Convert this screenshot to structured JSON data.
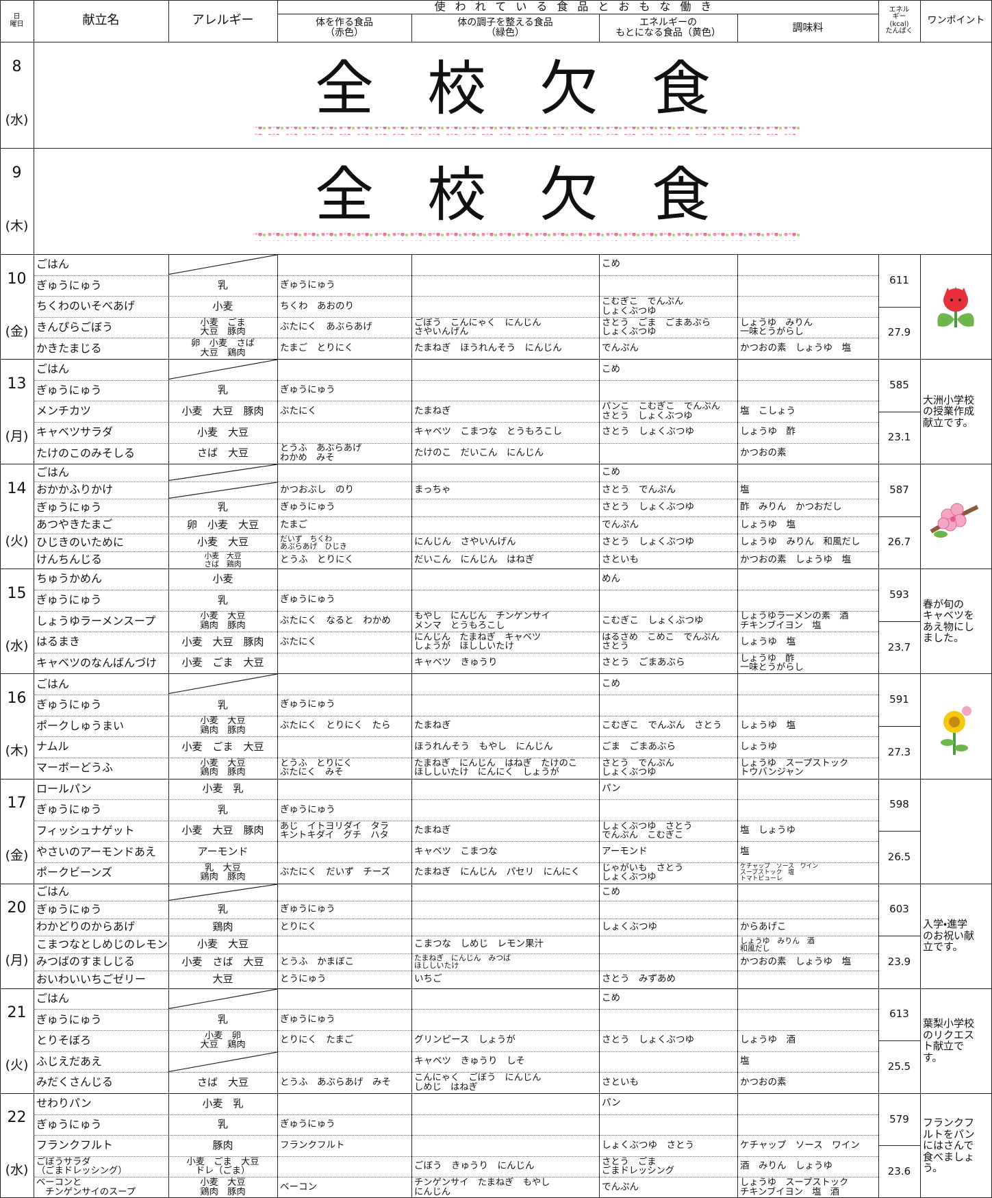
{
  "header": {
    "day": "日\n曜日",
    "menu": "献立名",
    "allergy": "アレルギー",
    "group": "使われている食品とおもな働き",
    "red": "体を作る食品\n（赤色）",
    "green": "体の調子を整える食品\n（緑色）",
    "yellow": "エネルギーの\nもとになる食品（黄色）",
    "seasoning": "調味料",
    "energy": "エネル\nギー\n(kcal)\nたんぱく",
    "point": "ワンポイント"
  },
  "days": [
    {
      "date": "8",
      "weekday": "(水)",
      "notice": "全校欠食"
    },
    {
      "date": "9",
      "weekday": "(木)",
      "notice": "全校欠食"
    },
    {
      "date": "10",
      "weekday": "(金)",
      "energy": 611,
      "protein": 27.9,
      "items": [
        {
          "menu": "ごはん",
          "yellow": "こめ"
        },
        {
          "menu": "ぎゅうにゅう",
          "allergy": "乳",
          "red": "ぎゅうにゅう"
        },
        {
          "menu": "ちくわのいそべあげ",
          "allergy": "小麦",
          "red": "ちくわ　あおのり",
          "yellow": "こむぎこ　でんぷん\nしょくぶつゆ"
        },
        {
          "menu": "きんぴらごぼう",
          "allergy": "小麦　ごま\n大豆　豚肉",
          "red": "ぶたにく　あぶらあげ",
          "green": "ごぼう　こんにゃく　にんじん\nさやいんげん",
          "yellow": "さとう　ごま　ごまあぶら\nしょくぶつゆ",
          "seasoning": "しょうゆ　みりん\n一味とうがらし"
        },
        {
          "menu": "かきたまじる",
          "allergy": "卵　小麦　さば\n大豆　鶏肉",
          "red": "たまご　とりにく",
          "green": "たまねぎ　ほうれんそう　にんじん",
          "yellow": "でんぷん",
          "seasoning": "かつおの素　しょうゆ　塩"
        }
      ]
    },
    {
      "date": "13",
      "weekday": "(月)",
      "energy": 585,
      "protein": 23.1,
      "point": "大洲小学校\nの授業作成\n献立です。",
      "items": [
        {
          "menu": "ごはん",
          "yellow": "こめ"
        },
        {
          "menu": "ぎゅうにゅう",
          "allergy": "乳",
          "red": "ぎゅうにゅう"
        },
        {
          "menu": "メンチカツ",
          "allergy": "小麦　大豆　豚肉",
          "red": "ぶたにく",
          "green": "たまねぎ",
          "yellow": "パンこ　こむぎこ　でんぷん\nさとう　しょくぶつゆ",
          "seasoning": "塩　こしょう"
        },
        {
          "menu": "キャベツサラダ",
          "allergy": "小麦　大豆",
          "green": "キャベツ　こまつな　とうもろこし",
          "yellow": "さとう　しょくぶつゆ",
          "seasoning": "しょうゆ　酢"
        },
        {
          "menu": "たけのこのみそしる",
          "allergy": "さば　大豆",
          "red": "とうふ　あぶらあげ\nわかめ　みそ",
          "green": "たけのこ　だいこん　にんじん",
          "seasoning": "かつおの素"
        }
      ]
    },
    {
      "date": "14",
      "weekday": "(火)",
      "energy": 587,
      "protein": 26.7,
      "items": [
        {
          "menu": "ごはん",
          "yellow": "こめ"
        },
        {
          "menu": "おかかふりかけ",
          "red": "かつおぶし　のり",
          "green": "まっちゃ",
          "yellow": "さとう　でんぷん",
          "seasoning": "塩"
        },
        {
          "menu": "ぎゅうにゅう",
          "allergy": "乳",
          "red": "ぎゅうにゅう",
          "yellow": "さとう　しょくぶつゆ",
          "seasoning": "酢　みりん　かつおだし"
        },
        {
          "menu": "あつやきたまご",
          "allergy": "卵　小麦　大豆",
          "red": "たまご",
          "yellow": "でんぷん",
          "seasoning": "しょうゆ　塩"
        },
        {
          "menu": "ひじきのいために",
          "allergy": "小麦　大豆",
          "red": "だいず　ちくわ\nあぶらあげ　ひじき",
          "green": "にんじん　さやいんげん",
          "yellow": "さとう　しょくぶつゆ",
          "seasoning": "しょうゆ　みりん　和風だし"
        },
        {
          "menu": "けんちんじる",
          "allergy": "小麦　大豆\nさば　鶏肉",
          "red": "とうふ　とりにく",
          "green": "だいこん　にんじん　はねぎ",
          "yellow": "さといも",
          "seasoning": "かつおの素　しょうゆ　塩"
        }
      ]
    },
    {
      "date": "15",
      "weekday": "(水)",
      "energy": 593,
      "protein": 23.7,
      "point": "春が旬の\nキャベツを\nあえ物にし\nました。",
      "items": [
        {
          "menu": "ちゅうかめん",
          "allergy": "小麦",
          "yellow": "めん"
        },
        {
          "menu": "ぎゅうにゅう",
          "allergy": "乳",
          "red": "ぎゅうにゅう"
        },
        {
          "menu": "しょうゆラーメンスープ",
          "allergy": "小麦　大豆\n鶏肉　豚肉",
          "red": "ぶたにく　なると　わかめ",
          "green": "もやし　にんじん　チンゲンサイ\nメンマ　とうもろこし",
          "yellow": "こむぎこ　しょくぶつゆ",
          "seasoning": "しょうゆラーメンの素　酒\nチキンブイヨン　塩"
        },
        {
          "menu": "はるまき",
          "allergy": "小麦　大豆　豚肉",
          "red": "ぶたにく",
          "green": "にんじん　たまねぎ　キャベツ\nしょうが　ほししいたけ",
          "yellow": "はるさめ　こめこ　でんぷん\nさとう",
          "seasoning": "しょうゆ　塩"
        },
        {
          "menu": "キャベツのなんばんづけ",
          "allergy": "小麦　ごま　大豆",
          "green": "キャベツ　きゅうり",
          "yellow": "さとう　ごまあぶら",
          "seasoning": "しょうゆ　酢\n一味とうがらし"
        }
      ]
    },
    {
      "date": "16",
      "weekday": "(木)",
      "energy": 591,
      "protein": 27.3,
      "items": [
        {
          "menu": "ごはん",
          "yellow": "こめ"
        },
        {
          "menu": "ぎゅうにゅう",
          "allergy": "乳",
          "red": "ぎゅうにゅう"
        },
        {
          "menu": "ポークしゅうまい",
          "allergy": "小麦　大豆\n鶏肉　豚肉",
          "red": "ぶたにく　とりにく　たら",
          "green": "たまねぎ",
          "yellow": "こむぎこ　でんぷん　さとう",
          "seasoning": "しょうゆ　塩"
        },
        {
          "menu": "ナムル",
          "allergy": "小麦　ごま　大豆",
          "green": "ほうれんそう　もやし　にんじん",
          "yellow": "ごま　ごまあぶら",
          "seasoning": "しょうゆ"
        },
        {
          "menu": "マーボーどうふ",
          "allergy": "小麦　大豆\n鶏肉　豚肉",
          "red": "とうふ　とりにく\nぶたにく　みそ",
          "green": "たまねぎ　にんじん　はねぎ　たけのこ\nほししいたけ　にんにく　しょうが",
          "yellow": "さとう　でんぷん\nしょくぶつゆ",
          "seasoning": "しょうゆ　スープストック\nトウバンジャン"
        }
      ]
    },
    {
      "date": "17",
      "weekday": "(金)",
      "energy": 598,
      "protein": 26.5,
      "items": [
        {
          "menu": "ロールパン",
          "allergy": "小麦　乳",
          "yellow": "パン"
        },
        {
          "menu": "ぎゅうにゅう",
          "allergy": "乳",
          "red": "ぎゅうにゅう"
        },
        {
          "menu": "フィッシュナゲット",
          "allergy": "小麦　大豆　豚肉",
          "red": "あじ　イトヨリダイ　タラ\nキントキダイ　グチ　ハタ",
          "green": "たまねぎ",
          "yellow": "しょくぶつゆ　さとう\nでんぷん　こむぎこ",
          "seasoning": "塩　しょうゆ"
        },
        {
          "menu": "やさいのアーモンドあえ",
          "allergy": "アーモンド",
          "green": "キャベツ　こまつな",
          "yellow": "アーモンド",
          "seasoning": "塩"
        },
        {
          "menu": "ポークビーンズ",
          "allergy": "乳　大豆\n鶏肉　豚肉",
          "red": "ぶたにく　だいず　チーズ",
          "green": "たまねぎ　にんじん　パセリ　にんにく",
          "yellow": "じゃがいも　さとう\nしょくぶつゆ",
          "seasoning": "ケチャップ　ソース　ワイン\nスープストック　塩\nトマトピューレ"
        }
      ]
    },
    {
      "date": "20",
      "weekday": "(月)",
      "energy": 603,
      "protein": 23.9,
      "point": "入学・進学\nのお祝い献\n立です。",
      "items": [
        {
          "menu": "ごはん",
          "yellow": "こめ"
        },
        {
          "menu": "ぎゅうにゅう",
          "allergy": "乳",
          "red": "ぎゅうにゅう"
        },
        {
          "menu": "わかどりのからあげ",
          "allergy": "鶏肉",
          "red": "とりにく",
          "yellow": "しょくぶつゆ",
          "seasoning": "からあげこ"
        },
        {
          "menu": "こまつなとしめじのレモンす",
          "allergy": "小麦　大豆",
          "green": "こまつな　しめじ　レモン果汁",
          "seasoning": "しょうゆ　みりん　酒\n和風だし"
        },
        {
          "menu": "みつばのすましじる",
          "allergy": "小麦　さば　大豆",
          "red": "とうふ　かまぼこ",
          "green": "たまねぎ　にんじん　みつば\nほししいたけ",
          "seasoning": "かつおの素　しょうゆ　塩"
        },
        {
          "menu": "おいわいいちごゼリー",
          "allergy": "大豆",
          "red": "とうにゅう",
          "green": "いちご",
          "yellow": "さとう　みずあめ"
        }
      ]
    },
    {
      "date": "21",
      "weekday": "(火)",
      "energy": 613,
      "protein": 25.5,
      "point": "葉梨小学校\nのリクエス\nト献立で\nす。",
      "items": [
        {
          "menu": "ごはん",
          "yellow": "こめ"
        },
        {
          "menu": "ぎゅうにゅう",
          "allergy": "乳",
          "red": "ぎゅうにゅう"
        },
        {
          "menu": "とりそぼろ",
          "allergy": "小麦　卵\n大豆　鶏肉",
          "red": "とりにく　たまご",
          "green": "グリンピース　しょうが",
          "yellow": "さとう　しょくぶつゆ",
          "seasoning": "しょうゆ　酒"
        },
        {
          "menu": "ふじえだあえ",
          "green": "キャベツ　きゅうり　しそ",
          "seasoning": "塩"
        },
        {
          "menu": "みだくさんじる",
          "allergy": "さば　大豆",
          "red": "とうふ　あぶらあげ　みそ",
          "green": "こんにゃく　ごぼう　にんじん\nしめじ　はねぎ",
          "yellow": "さといも",
          "seasoning": "かつおの素"
        }
      ]
    },
    {
      "date": "22",
      "weekday": "(水)",
      "energy": 579,
      "protein": 23.6,
      "point": "フランクフ\nルトをパン\nにはさんで\n食べましょ\nう。",
      "items": [
        {
          "menu": "せわりパン",
          "allergy": "小麦　乳",
          "yellow": "パン"
        },
        {
          "menu": "ぎゅうにゅう",
          "allergy": "乳",
          "red": "ぎゅうにゅう"
        },
        {
          "menu": "フランクフルト",
          "allergy": "豚肉",
          "red": "フランクフルト",
          "yellow": "しょくぶつゆ　さとう",
          "seasoning": "ケチャップ　ソース　ワイン"
        },
        {
          "menu": "ごぼうサラダ\n（ごまドレッシング）",
          "allergy": "小麦　ごま　大豆\nドレ（ごま）",
          "green": "ごぼう　きゅうり　にんじん",
          "yellow": "さとう　ごま\nごまドレッシング",
          "seasoning": "酒　みりん　しょうゆ"
        },
        {
          "menu": "ベーコンと\n　チンゲンサイのスープ",
          "allergy": "小麦　大豆\n鶏肉　豚肉",
          "red": "ベーコン",
          "green": "チンゲンサイ　たまねぎ　もやし\nにんじん",
          "yellow": "でんぷん",
          "seasoning": "しょうゆ　スープストック\nチキンブイヨン　塩　酒"
        }
      ]
    }
  ]
}
